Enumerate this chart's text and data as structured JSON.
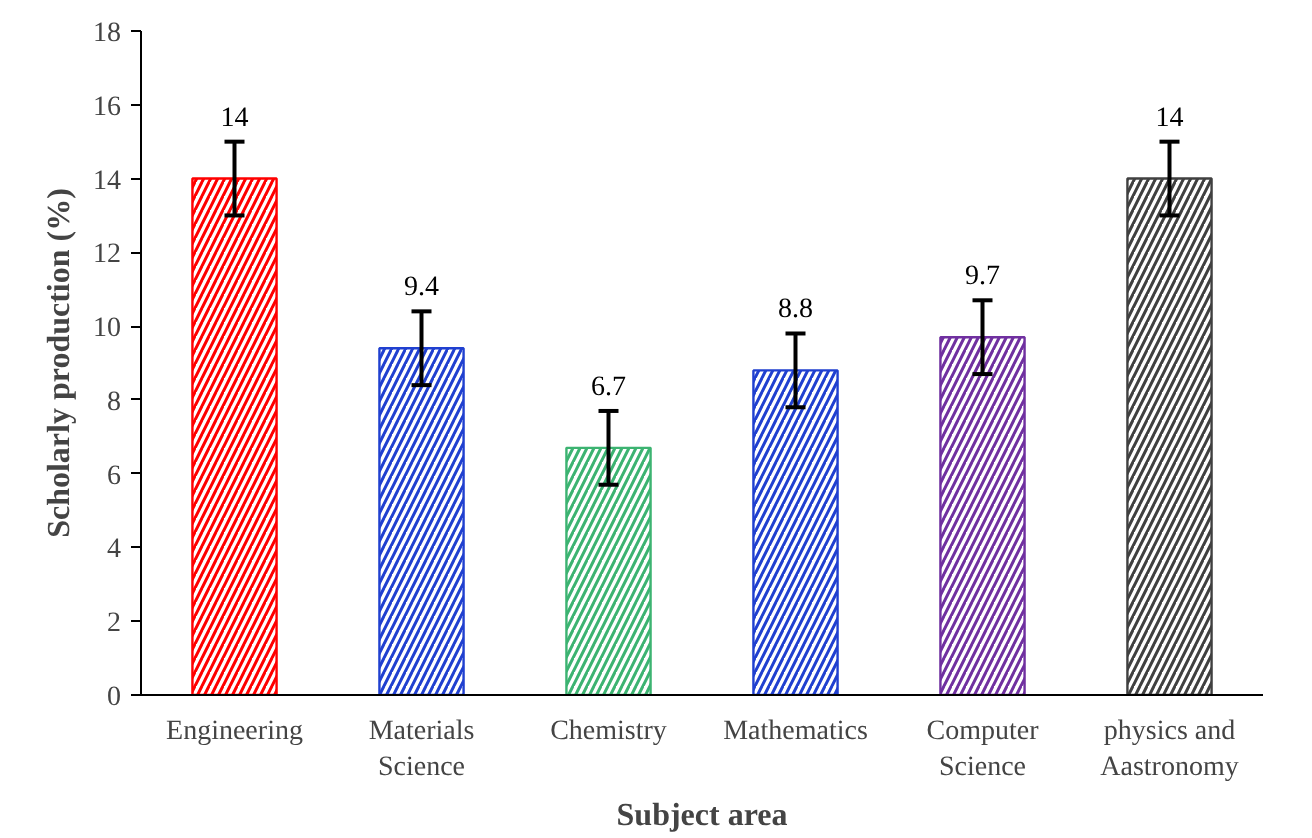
{
  "chart_data": {
    "type": "bar",
    "xlabel": "Subject area",
    "ylabel": "Scholarly production (%)",
    "categories": [
      "Engineering",
      "Materials\nScience",
      "Chemistry",
      "Mathematics",
      "Computer\nScience",
      "physics and\nAastronomy"
    ],
    "values": [
      14,
      9.4,
      6.7,
      8.8,
      9.7,
      14
    ],
    "colors": [
      "#ff0000",
      "#2040d0",
      "#3cb371",
      "#2040d0",
      "#7030a0",
      "#404040"
    ],
    "errors": [
      1,
      1,
      1,
      1,
      1,
      1
    ],
    "data_labels": true,
    "ylim": [
      0,
      18
    ],
    "yticks": [
      0,
      2,
      4,
      6,
      8,
      10,
      12,
      14,
      16,
      18
    ],
    "grid": false
  }
}
